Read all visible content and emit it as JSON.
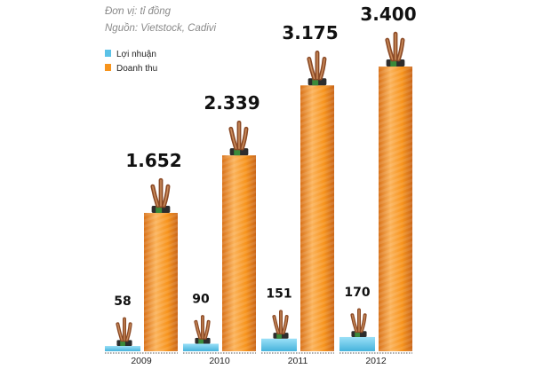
{
  "header": {
    "unit_note": "Đơn vị: tỉ đồng",
    "source_note": "Nguồn: Vietstock, Cadivi"
  },
  "colors": {
    "profit": "#5bc2e7",
    "revenue": "#f7941d",
    "revenue_dark": "#d8721a",
    "revenue_light": "#fbb35b"
  },
  "icons": {
    "bar_topper": "cable-wires-icon"
  },
  "chart_data": {
    "type": "bar",
    "title": "",
    "xlabel": "",
    "ylabel": "",
    "unit": "Đơn vị: tỉ đồng",
    "categories": [
      "2009",
      "2010",
      "2011",
      "2012"
    ],
    "series": [
      {
        "name": "Lợi nhuận",
        "values": [
          58,
          90,
          151,
          170
        ],
        "labels": [
          "58",
          "90",
          "151",
          "170"
        ]
      },
      {
        "name": "Doanh thu",
        "values": [
          1652,
          2339,
          3175,
          3400
        ],
        "labels": [
          "1.652",
          "2.339",
          "3.175",
          "3.400"
        ]
      }
    ],
    "ylim": [
      0,
      3400
    ],
    "grid": false,
    "axis_shown": false,
    "legend_position": "top-left"
  }
}
